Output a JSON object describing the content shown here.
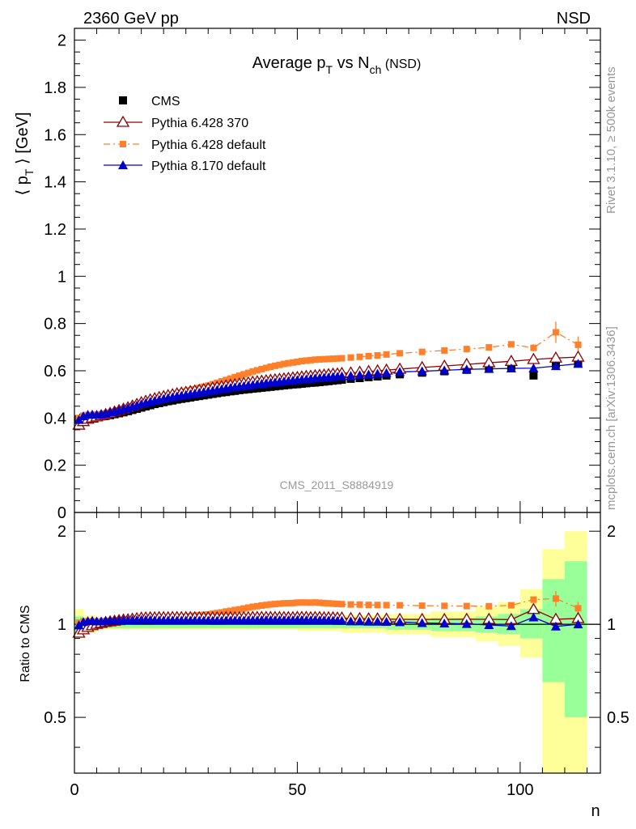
{
  "header": {
    "left": "2360 GeV pp",
    "right": "NSD",
    "side_top": "Rivet 3.1.10, ≥ 500k events",
    "side_bottom": "mcplots.cern.ch [arXiv:1306.3436]",
    "watermark": "CMS_2011_S8884919"
  },
  "chart_data": {
    "type": "scatter",
    "title": {
      "main": "Average p",
      "sub1": "T",
      "mid": " vs N",
      "sub2": "ch",
      "suffix": " (NSD)"
    },
    "ylabel_top": {
      "pre": "⟨ p",
      "sub": "T",
      "post": " ⟩ [GeV]"
    },
    "ylabel_bottom": "Ratio to CMS",
    "xlabel": "n",
    "xlim": [
      0,
      118
    ],
    "ylim_top": [
      0,
      2.05
    ],
    "ylim_ratio": [
      0.33,
      2.3
    ],
    "ratio_log_scale": true,
    "x_ticks": [
      "0",
      "50",
      "100"
    ],
    "y_ticks_top": [
      "0",
      "0.2",
      "0.4",
      "0.6",
      "0.8",
      "1",
      "1.2",
      "1.4",
      "1.6",
      "1.8",
      "2"
    ],
    "y_ticks_ratio": [
      "0.5",
      "1",
      "2"
    ],
    "legend": [
      "CMS",
      "Pythia 6.428 370",
      "Pythia 6.428 default",
      "Pythia 8.170 default"
    ],
    "colors": {
      "cms": "#000000",
      "p370": "#8b0000",
      "pdef": "#ff7f2a",
      "p8": "#0000cc",
      "band1": "#99ff99",
      "band2": "#ffff99"
    },
    "cms": {
      "x": [
        1,
        2,
        3,
        4,
        5,
        6,
        7,
        8,
        9,
        10,
        11,
        12,
        13,
        14,
        15,
        16,
        17,
        18,
        19,
        20,
        21,
        22,
        23,
        24,
        25,
        26,
        27,
        28,
        29,
        30,
        31,
        32,
        33,
        34,
        35,
        36,
        37,
        38,
        39,
        40,
        41,
        42,
        43,
        44,
        45,
        46,
        47,
        48,
        49,
        50,
        51,
        52,
        53,
        54,
        55,
        56,
        57,
        58,
        59,
        60,
        62,
        64,
        66,
        68,
        70,
        73,
        78,
        83,
        88,
        93,
        98,
        103,
        108,
        113
      ],
      "y": [
        0.395,
        0.401,
        0.404,
        0.404,
        0.405,
        0.407,
        0.409,
        0.412,
        0.416,
        0.42,
        0.424,
        0.429,
        0.434,
        0.439,
        0.444,
        0.449,
        0.454,
        0.459,
        0.463,
        0.467,
        0.471,
        0.474,
        0.478,
        0.481,
        0.484,
        0.487,
        0.49,
        0.493,
        0.496,
        0.499,
        0.502,
        0.505,
        0.508,
        0.51,
        0.513,
        0.515,
        0.518,
        0.52,
        0.522,
        0.524,
        0.526,
        0.528,
        0.53,
        0.532,
        0.534,
        0.536,
        0.538,
        0.54,
        0.542,
        0.543,
        0.545,
        0.547,
        0.549,
        0.55,
        0.552,
        0.554,
        0.556,
        0.558,
        0.56,
        0.562,
        0.566,
        0.569,
        0.573,
        0.576,
        0.58,
        0.585,
        0.592,
        0.598,
        0.604,
        0.611,
        0.618,
        0.58,
        0.63,
        0.63
      ]
    },
    "p370": {
      "x": [
        1,
        2,
        3,
        4,
        5,
        6,
        7,
        8,
        9,
        10,
        11,
        12,
        13,
        14,
        15,
        16,
        17,
        18,
        19,
        20,
        21,
        22,
        23,
        24,
        25,
        26,
        27,
        28,
        29,
        30,
        31,
        32,
        33,
        34,
        35,
        36,
        37,
        38,
        39,
        40,
        41,
        42,
        43,
        44,
        45,
        46,
        47,
        48,
        49,
        50,
        51,
        52,
        53,
        54,
        55,
        56,
        57,
        58,
        59,
        60,
        62,
        64,
        66,
        68,
        70,
        73,
        78,
        83,
        88,
        93,
        98,
        103,
        108,
        113
      ],
      "y": [
        0.37,
        0.385,
        0.395,
        0.4,
        0.405,
        0.41,
        0.415,
        0.42,
        0.426,
        0.432,
        0.438,
        0.444,
        0.451,
        0.458,
        0.465,
        0.471,
        0.477,
        0.482,
        0.487,
        0.491,
        0.495,
        0.499,
        0.503,
        0.506,
        0.509,
        0.512,
        0.515,
        0.518,
        0.521,
        0.524,
        0.527,
        0.53,
        0.533,
        0.536,
        0.539,
        0.541,
        0.544,
        0.547,
        0.549,
        0.552,
        0.554,
        0.556,
        0.558,
        0.56,
        0.562,
        0.564,
        0.566,
        0.568,
        0.57,
        0.572,
        0.574,
        0.576,
        0.577,
        0.579,
        0.581,
        0.582,
        0.584,
        0.586,
        0.587,
        0.589,
        0.591,
        0.594,
        0.597,
        0.6,
        0.603,
        0.607,
        0.614,
        0.62,
        0.627,
        0.634,
        0.64,
        0.648,
        0.654,
        0.658
      ]
    },
    "pdef": {
      "x": [
        1,
        2,
        3,
        4,
        5,
        6,
        7,
        8,
        9,
        10,
        11,
        12,
        13,
        14,
        15,
        16,
        17,
        18,
        19,
        20,
        21,
        22,
        23,
        24,
        25,
        26,
        27,
        28,
        29,
        30,
        31,
        32,
        33,
        34,
        35,
        36,
        37,
        38,
        39,
        40,
        41,
        42,
        43,
        44,
        45,
        46,
        47,
        48,
        49,
        50,
        51,
        52,
        53,
        54,
        55,
        56,
        57,
        58,
        59,
        60,
        62,
        64,
        66,
        68,
        70,
        73,
        78,
        83,
        88,
        93,
        98,
        103,
        108,
        113
      ],
      "y": [
        0.4,
        0.41,
        0.413,
        0.413,
        0.414,
        0.416,
        0.419,
        0.423,
        0.427,
        0.432,
        0.437,
        0.443,
        0.449,
        0.455,
        0.461,
        0.467,
        0.473,
        0.478,
        0.483,
        0.488,
        0.493,
        0.497,
        0.502,
        0.507,
        0.512,
        0.517,
        0.522,
        0.527,
        0.532,
        0.537,
        0.543,
        0.549,
        0.555,
        0.561,
        0.567,
        0.573,
        0.579,
        0.585,
        0.591,
        0.597,
        0.602,
        0.607,
        0.612,
        0.617,
        0.621,
        0.625,
        0.629,
        0.632,
        0.635,
        0.638,
        0.641,
        0.643,
        0.645,
        0.647,
        0.648,
        0.649,
        0.65,
        0.651,
        0.652,
        0.653,
        0.656,
        0.659,
        0.662,
        0.665,
        0.669,
        0.674,
        0.68,
        0.686,
        0.692,
        0.699,
        0.712,
        0.697,
        0.763,
        0.71
      ],
      "err": [
        0,
        0,
        0,
        0,
        0,
        0,
        0,
        0,
        0,
        0,
        0,
        0,
        0,
        0,
        0,
        0,
        0,
        0,
        0,
        0,
        0,
        0,
        0,
        0,
        0,
        0,
        0,
        0,
        0,
        0,
        0,
        0,
        0,
        0,
        0,
        0,
        0,
        0,
        0,
        0,
        0,
        0,
        0,
        0,
        0,
        0,
        0,
        0,
        0,
        0,
        0,
        0,
        0,
        0,
        0,
        0,
        0,
        0,
        0,
        0,
        0,
        0,
        0,
        0,
        0,
        0,
        0,
        0,
        0,
        0,
        0.01,
        0.015,
        0.045,
        0.035
      ]
    },
    "p8": {
      "x": [
        1,
        2,
        3,
        4,
        5,
        6,
        7,
        8,
        9,
        10,
        11,
        12,
        13,
        14,
        15,
        16,
        17,
        18,
        19,
        20,
        21,
        22,
        23,
        24,
        25,
        26,
        27,
        28,
        29,
        30,
        31,
        32,
        33,
        34,
        35,
        36,
        37,
        38,
        39,
        40,
        41,
        42,
        43,
        44,
        45,
        46,
        47,
        48,
        49,
        50,
        51,
        52,
        53,
        54,
        55,
        56,
        57,
        58,
        59,
        60,
        62,
        64,
        66,
        68,
        70,
        73,
        78,
        83,
        88,
        93,
        98,
        103,
        108,
        113
      ],
      "y": [
        0.392,
        0.408,
        0.414,
        0.415,
        0.414,
        0.416,
        0.419,
        0.423,
        0.427,
        0.432,
        0.437,
        0.442,
        0.448,
        0.453,
        0.459,
        0.464,
        0.469,
        0.473,
        0.477,
        0.481,
        0.485,
        0.488,
        0.492,
        0.495,
        0.498,
        0.501,
        0.504,
        0.507,
        0.51,
        0.513,
        0.516,
        0.519,
        0.522,
        0.525,
        0.528,
        0.53,
        0.533,
        0.535,
        0.538,
        0.54,
        0.542,
        0.545,
        0.547,
        0.549,
        0.551,
        0.553,
        0.555,
        0.557,
        0.559,
        0.561,
        0.563,
        0.564,
        0.566,
        0.568,
        0.569,
        0.571,
        0.572,
        0.574,
        0.575,
        0.577,
        0.579,
        0.582,
        0.585,
        0.588,
        0.591,
        0.595,
        0.598,
        0.602,
        0.606,
        0.608,
        0.61,
        0.611,
        0.62,
        0.63
      ]
    },
    "bands": {
      "edges": [
        0,
        2,
        5,
        10,
        20,
        30,
        40,
        50,
        60,
        70,
        80,
        90,
        95,
        100,
        105,
        110,
        115
      ],
      "inner": [
        [
          0.94,
          1.06
        ],
        [
          0.96,
          1.04
        ],
        [
          0.97,
          1.03
        ],
        [
          0.97,
          1.03
        ],
        [
          0.97,
          1.03
        ],
        [
          0.97,
          1.03
        ],
        [
          0.97,
          1.03
        ],
        [
          0.97,
          1.03
        ],
        [
          0.97,
          1.03
        ],
        [
          0.96,
          1.04
        ],
        [
          0.95,
          1.05
        ],
        [
          0.94,
          1.06
        ],
        [
          0.93,
          1.08
        ],
        [
          0.9,
          1.12
        ],
        [
          0.65,
          1.4
        ],
        [
          0.5,
          1.6
        ]
      ],
      "outer": [
        [
          0.9,
          1.12
        ],
        [
          0.94,
          1.07
        ],
        [
          0.96,
          1.05
        ],
        [
          0.96,
          1.05
        ],
        [
          0.96,
          1.05
        ],
        [
          0.96,
          1.05
        ],
        [
          0.96,
          1.05
        ],
        [
          0.95,
          1.06
        ],
        [
          0.94,
          1.07
        ],
        [
          0.93,
          1.08
        ],
        [
          0.91,
          1.1
        ],
        [
          0.88,
          1.14
        ],
        [
          0.85,
          1.18
        ],
        [
          0.78,
          1.3
        ],
        [
          0.3,
          1.75
        ],
        [
          0.3,
          2.0
        ]
      ]
    }
  }
}
